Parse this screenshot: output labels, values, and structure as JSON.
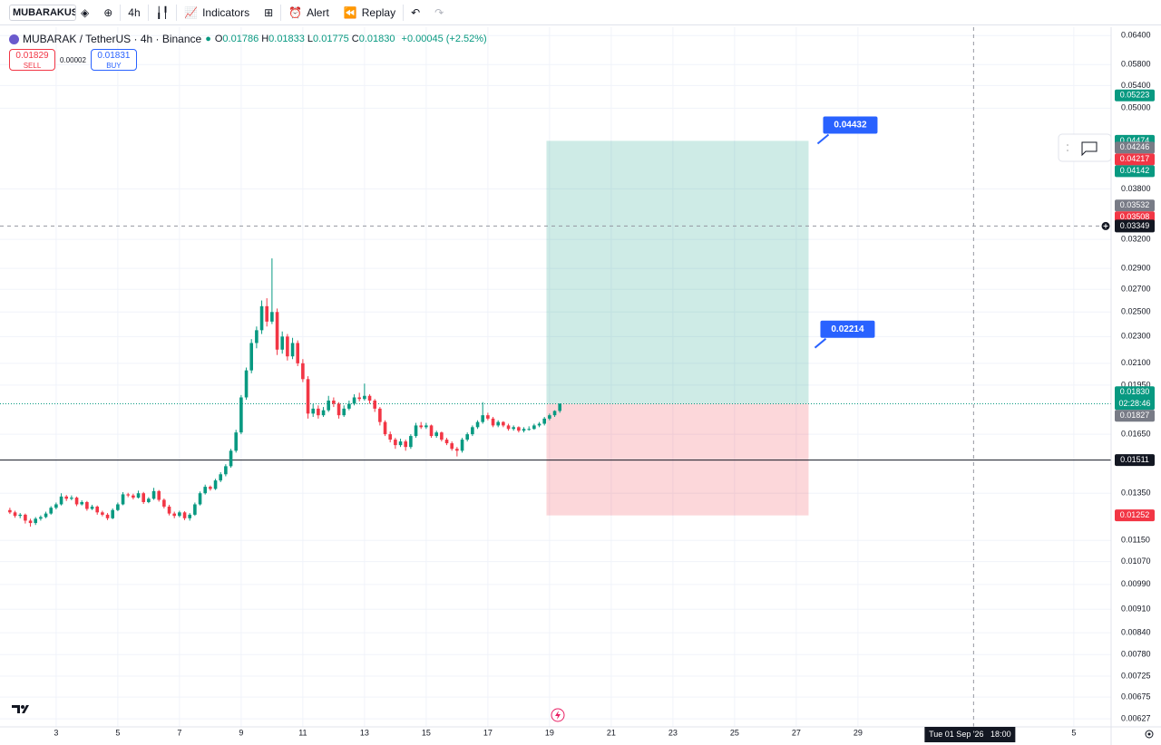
{
  "toolbar": {
    "symbol": "MUBARAKUSDT",
    "interval": "4h",
    "indicators": "Indicators",
    "alert": "Alert",
    "replay": "Replay"
  },
  "legend": {
    "title": "MUBARAK / TetherUS · 4h · Binance",
    "ohlc": [
      {
        "key": "O",
        "value": "0.01786"
      },
      {
        "key": "H",
        "value": "0.01833"
      },
      {
        "key": "L",
        "value": "0.01775"
      },
      {
        "key": "C",
        "value": "0.01830"
      }
    ],
    "change": "+0.00045 (+2.52%)"
  },
  "trade": {
    "sell_price": "0.01829",
    "sell": "SELL",
    "spread": "0.00002",
    "buy_price": "0.01831",
    "buy": "BUY"
  },
  "chart_data": {
    "type": "candlestick",
    "log_scale": true,
    "grid": true,
    "up_color": "#089981",
    "down_color": "#f23645",
    "xlim": [
      1.18,
      37.21
    ],
    "ylim": [
      0.0061,
      0.06585
    ],
    "xticks": [
      3,
      5,
      7,
      9,
      11,
      13,
      15,
      17,
      19,
      21,
      23,
      25,
      27,
      29,
      {
        "value": 36,
        "label": "5"
      }
    ],
    "yticks": [
      {
        "value": 0.064,
        "label": "0.06400"
      },
      {
        "value": 0.058,
        "label": "0.05800"
      },
      {
        "value": 0.054,
        "label": "0.05400"
      },
      {
        "value": 0.05,
        "label": "0.05000"
      },
      {
        "value": 0.038,
        "label": "0.03800"
      },
      {
        "value": 0.032,
        "label": "0.03200"
      },
      {
        "value": 0.029,
        "label": "0.02900"
      },
      {
        "value": 0.027,
        "label": "0.02700"
      },
      {
        "value": 0.025,
        "label": "0.02500"
      },
      {
        "value": 0.023,
        "label": "0.02300"
      },
      {
        "value": 0.021,
        "label": "0.02100"
      },
      {
        "value": 0.0195,
        "label": "0.01950"
      },
      {
        "value": 0.0165,
        "label": "0.01650"
      },
      {
        "value": 0.0135,
        "label": "0.01350"
      },
      {
        "value": 0.0115,
        "label": "0.01150"
      },
      {
        "value": 0.0107,
        "label": "0.01070"
      },
      {
        "value": 0.0099,
        "label": "0.00990"
      },
      {
        "value": 0.0091,
        "label": "0.00910"
      },
      {
        "value": 0.0084,
        "label": "0.00840"
      },
      {
        "value": 0.0078,
        "label": "0.00780"
      },
      {
        "value": 0.00725,
        "label": "0.00725"
      },
      {
        "value": 0.00675,
        "label": "0.00675"
      },
      {
        "value": 0.00627,
        "label": "0.00627"
      }
    ],
    "x": [
      1.5,
      1.667,
      1.833,
      2,
      2.167,
      2.333,
      2.5,
      2.667,
      2.833,
      3,
      3.167,
      3.333,
      3.5,
      3.667,
      3.833,
      4,
      4.167,
      4.333,
      4.5,
      4.667,
      4.833,
      5,
      5.167,
      5.333,
      5.5,
      5.667,
      5.833,
      6,
      6.167,
      6.333,
      6.5,
      6.667,
      6.833,
      7,
      7.167,
      7.333,
      7.5,
      7.667,
      7.833,
      8,
      8.167,
      8.333,
      8.5,
      8.667,
      8.833,
      9,
      9.167,
      9.333,
      9.5,
      9.667,
      9.833,
      10,
      10.167,
      10.333,
      10.5,
      10.667,
      10.833,
      11,
      11.167,
      11.333,
      11.5,
      11.667,
      11.833,
      12,
      12.167,
      12.333,
      12.5,
      12.667,
      12.833,
      13,
      13.167,
      13.333,
      13.5,
      13.667,
      13.833,
      14,
      14.167,
      14.333,
      14.5,
      14.667,
      14.833,
      15,
      15.167,
      15.333,
      15.5,
      15.667,
      15.833,
      16,
      16.167,
      16.333,
      16.5,
      16.667,
      16.833,
      17,
      17.167,
      17.333,
      17.5,
      17.667,
      17.833,
      18,
      18.167,
      18.333,
      18.5,
      18.667,
      18.833,
      19,
      19.167,
      19.333
    ],
    "candles": [
      [
        0.01275,
        0.01285,
        0.01258,
        0.01265
      ],
      [
        0.01265,
        0.01272,
        0.01242,
        0.0125
      ],
      [
        0.0125,
        0.01262,
        0.0124,
        0.01255
      ],
      [
        0.01255,
        0.0126,
        0.01218,
        0.0123
      ],
      [
        0.0123,
        0.01238,
        0.01205,
        0.0122
      ],
      [
        0.0122,
        0.01245,
        0.01212,
        0.01238
      ],
      [
        0.01238,
        0.01252,
        0.0123,
        0.01245
      ],
      [
        0.01245,
        0.01268,
        0.0124,
        0.0126
      ],
      [
        0.0126,
        0.01292,
        0.01255,
        0.01285
      ],
      [
        0.01285,
        0.01308,
        0.01278,
        0.013
      ],
      [
        0.013,
        0.0135,
        0.01295,
        0.01335
      ],
      [
        0.01335,
        0.01342,
        0.01315,
        0.01325
      ],
      [
        0.01325,
        0.0134,
        0.01318,
        0.0133
      ],
      [
        0.0133,
        0.01335,
        0.01292,
        0.013
      ],
      [
        0.013,
        0.01318,
        0.01295,
        0.0131
      ],
      [
        0.0131,
        0.01315,
        0.01272,
        0.0128
      ],
      [
        0.0128,
        0.01298,
        0.01275,
        0.0129
      ],
      [
        0.0129,
        0.01295,
        0.01255,
        0.01265
      ],
      [
        0.01265,
        0.01272,
        0.01248,
        0.01255
      ],
      [
        0.01255,
        0.01262,
        0.01232,
        0.0124
      ],
      [
        0.0124,
        0.01282,
        0.01236,
        0.01275
      ],
      [
        0.01275,
        0.01308,
        0.0127,
        0.013
      ],
      [
        0.013,
        0.01355,
        0.01296,
        0.01345
      ],
      [
        0.01345,
        0.01352,
        0.01332,
        0.0134
      ],
      [
        0.0134,
        0.01348,
        0.01322,
        0.0133
      ],
      [
        0.0133,
        0.01362,
        0.01326,
        0.0135
      ],
      [
        0.0135,
        0.01356,
        0.01302,
        0.0131
      ],
      [
        0.0131,
        0.01332,
        0.01305,
        0.01325
      ],
      [
        0.01325,
        0.01375,
        0.0132,
        0.0136
      ],
      [
        0.0136,
        0.01365,
        0.01312,
        0.0132
      ],
      [
        0.0132,
        0.01326,
        0.01282,
        0.0129
      ],
      [
        0.0129,
        0.01298,
        0.01252,
        0.0126
      ],
      [
        0.0126,
        0.01268,
        0.0124,
        0.0125
      ],
      [
        0.0125,
        0.01272,
        0.01244,
        0.01265
      ],
      [
        0.01265,
        0.0127,
        0.01232,
        0.0124
      ],
      [
        0.0124,
        0.01262,
        0.0123,
        0.01255
      ],
      [
        0.01255,
        0.01308,
        0.0125,
        0.013
      ],
      [
        0.013,
        0.01358,
        0.01295,
        0.0135
      ],
      [
        0.0135,
        0.0139,
        0.01344,
        0.0138
      ],
      [
        0.0138,
        0.01386,
        0.01362,
        0.0137
      ],
      [
        0.0137,
        0.01418,
        0.01365,
        0.0141
      ],
      [
        0.0141,
        0.0145,
        0.01402,
        0.0144
      ],
      [
        0.0144,
        0.0149,
        0.0143,
        0.0148
      ],
      [
        0.0148,
        0.0157,
        0.01472,
        0.0156
      ],
      [
        0.0156,
        0.01675,
        0.0155,
        0.0166
      ],
      [
        0.0166,
        0.01885,
        0.0165,
        0.0187
      ],
      [
        0.0187,
        0.0207,
        0.01855,
        0.0205
      ],
      [
        0.0205,
        0.0228,
        0.0203,
        0.0225
      ],
      [
        0.0225,
        0.0238,
        0.0221,
        0.0235
      ],
      [
        0.0235,
        0.026,
        0.0232,
        0.0255
      ],
      [
        0.0255,
        0.0262,
        0.0238,
        0.0242
      ],
      [
        0.0242,
        0.03,
        0.024,
        0.025
      ],
      [
        0.025,
        0.0253,
        0.0216,
        0.022
      ],
      [
        0.022,
        0.0234,
        0.0217,
        0.023
      ],
      [
        0.023,
        0.0232,
        0.0212,
        0.0215
      ],
      [
        0.0215,
        0.0229,
        0.0213,
        0.0225
      ],
      [
        0.0225,
        0.0227,
        0.0208,
        0.021
      ],
      [
        0.021,
        0.0213,
        0.0197,
        0.0199
      ],
      [
        0.0199,
        0.0201,
        0.0174,
        0.0177
      ],
      [
        0.0177,
        0.0183,
        0.0175,
        0.018
      ],
      [
        0.018,
        0.0182,
        0.0174,
        0.0176
      ],
      [
        0.0176,
        0.0181,
        0.0175,
        0.0179
      ],
      [
        0.0179,
        0.0188,
        0.0178,
        0.0185
      ],
      [
        0.0185,
        0.0187,
        0.0181,
        0.0183
      ],
      [
        0.0183,
        0.0184,
        0.0174,
        0.0176
      ],
      [
        0.0176,
        0.0182,
        0.0175,
        0.018
      ],
      [
        0.018,
        0.0185,
        0.0179,
        0.0183
      ],
      [
        0.0183,
        0.0189,
        0.0182,
        0.0187
      ],
      [
        0.0187,
        0.019,
        0.01845,
        0.0186
      ],
      [
        0.0186,
        0.0196,
        0.0185,
        0.0188
      ],
      [
        0.0188,
        0.0189,
        0.0183,
        0.0185
      ],
      [
        0.0185,
        0.0186,
        0.0178,
        0.018
      ],
      [
        0.018,
        0.0181,
        0.017,
        0.0172
      ],
      [
        0.0172,
        0.0173,
        0.0164,
        0.0165
      ],
      [
        0.0165,
        0.01665,
        0.01605,
        0.0162
      ],
      [
        0.0162,
        0.0163,
        0.0157,
        0.0159
      ],
      [
        0.0159,
        0.01625,
        0.0158,
        0.0161
      ],
      [
        0.0161,
        0.0162,
        0.0156,
        0.0158
      ],
      [
        0.0158,
        0.0165,
        0.0157,
        0.0164
      ],
      [
        0.0164,
        0.01715,
        0.0163,
        0.017
      ],
      [
        0.017,
        0.0172,
        0.0168,
        0.0169
      ],
      [
        0.0169,
        0.01715,
        0.0168,
        0.017
      ],
      [
        0.017,
        0.01705,
        0.0163,
        0.0164
      ],
      [
        0.0164,
        0.0167,
        0.0163,
        0.0166
      ],
      [
        0.0166,
        0.01665,
        0.0161,
        0.0162
      ],
      [
        0.0162,
        0.0163,
        0.0159,
        0.016
      ],
      [
        0.016,
        0.0161,
        0.0156,
        0.0157
      ],
      [
        0.0157,
        0.0158,
        0.0153,
        0.0156
      ],
      [
        0.0156,
        0.0163,
        0.0155,
        0.0162
      ],
      [
        0.0162,
        0.0166,
        0.0161,
        0.0165
      ],
      [
        0.0165,
        0.017,
        0.0164,
        0.0169
      ],
      [
        0.0169,
        0.0173,
        0.0168,
        0.0172
      ],
      [
        0.0172,
        0.0184,
        0.0171,
        0.0176
      ],
      [
        0.0176,
        0.01775,
        0.0173,
        0.0174
      ],
      [
        0.0174,
        0.0175,
        0.0169,
        0.017
      ],
      [
        0.017,
        0.0173,
        0.0169,
        0.0172
      ],
      [
        0.0172,
        0.01725,
        0.0169,
        0.017
      ],
      [
        0.017,
        0.0171,
        0.0167,
        0.0168
      ],
      [
        0.0168,
        0.017,
        0.0167,
        0.0169
      ],
      [
        0.0169,
        0.01695,
        0.0166,
        0.0167
      ],
      [
        0.0167,
        0.0169,
        0.0166,
        0.0168
      ],
      [
        0.0168,
        0.01695,
        0.0167,
        0.0168
      ],
      [
        0.0168,
        0.0171,
        0.01675,
        0.017
      ],
      [
        0.017,
        0.0172,
        0.0169,
        0.0171
      ],
      [
        0.0171,
        0.0175,
        0.017,
        0.0174
      ],
      [
        0.0174,
        0.0177,
        0.0173,
        0.0176
      ],
      [
        0.0176,
        0.0179,
        0.0175,
        0.01786
      ],
      [
        0.01786,
        0.01833,
        0.01775,
        0.0183
      ]
    ],
    "position": {
      "start": 18.9,
      "end": 27.4,
      "entry": 0.0183,
      "target": 0.04474,
      "stop": 0.01252
    },
    "callouts": [
      {
        "value": 0.04432
      },
      {
        "value": 0.02214
      }
    ],
    "price_labels": [
      {
        "value": 0.05223,
        "color": "#089981"
      },
      {
        "value": 0.04474,
        "color": "#089981"
      },
      {
        "value": 0.04246,
        "color": "#787b86"
      },
      {
        "value": 0.04217,
        "color": "#f23645"
      },
      {
        "value": 0.04142,
        "color": "#089981"
      },
      {
        "value": 0.03532,
        "color": "#787b86"
      },
      {
        "value": 0.03508,
        "color": "#f23645"
      },
      {
        "value": 0.0183,
        "label": "0.01830",
        "color": "#089981",
        "countdown": "02:28:46",
        "line": "dotted"
      },
      {
        "value": 0.01827,
        "color": "#787b86"
      },
      {
        "value": 0.01511,
        "color": "#131722",
        "line": "solid"
      },
      {
        "value": 0.01252,
        "color": "#f23645"
      }
    ],
    "crosshair": {
      "x": 32.75,
      "x_label": "Tue 01 Sep '26   18:00",
      "y": 0.03349
    }
  }
}
